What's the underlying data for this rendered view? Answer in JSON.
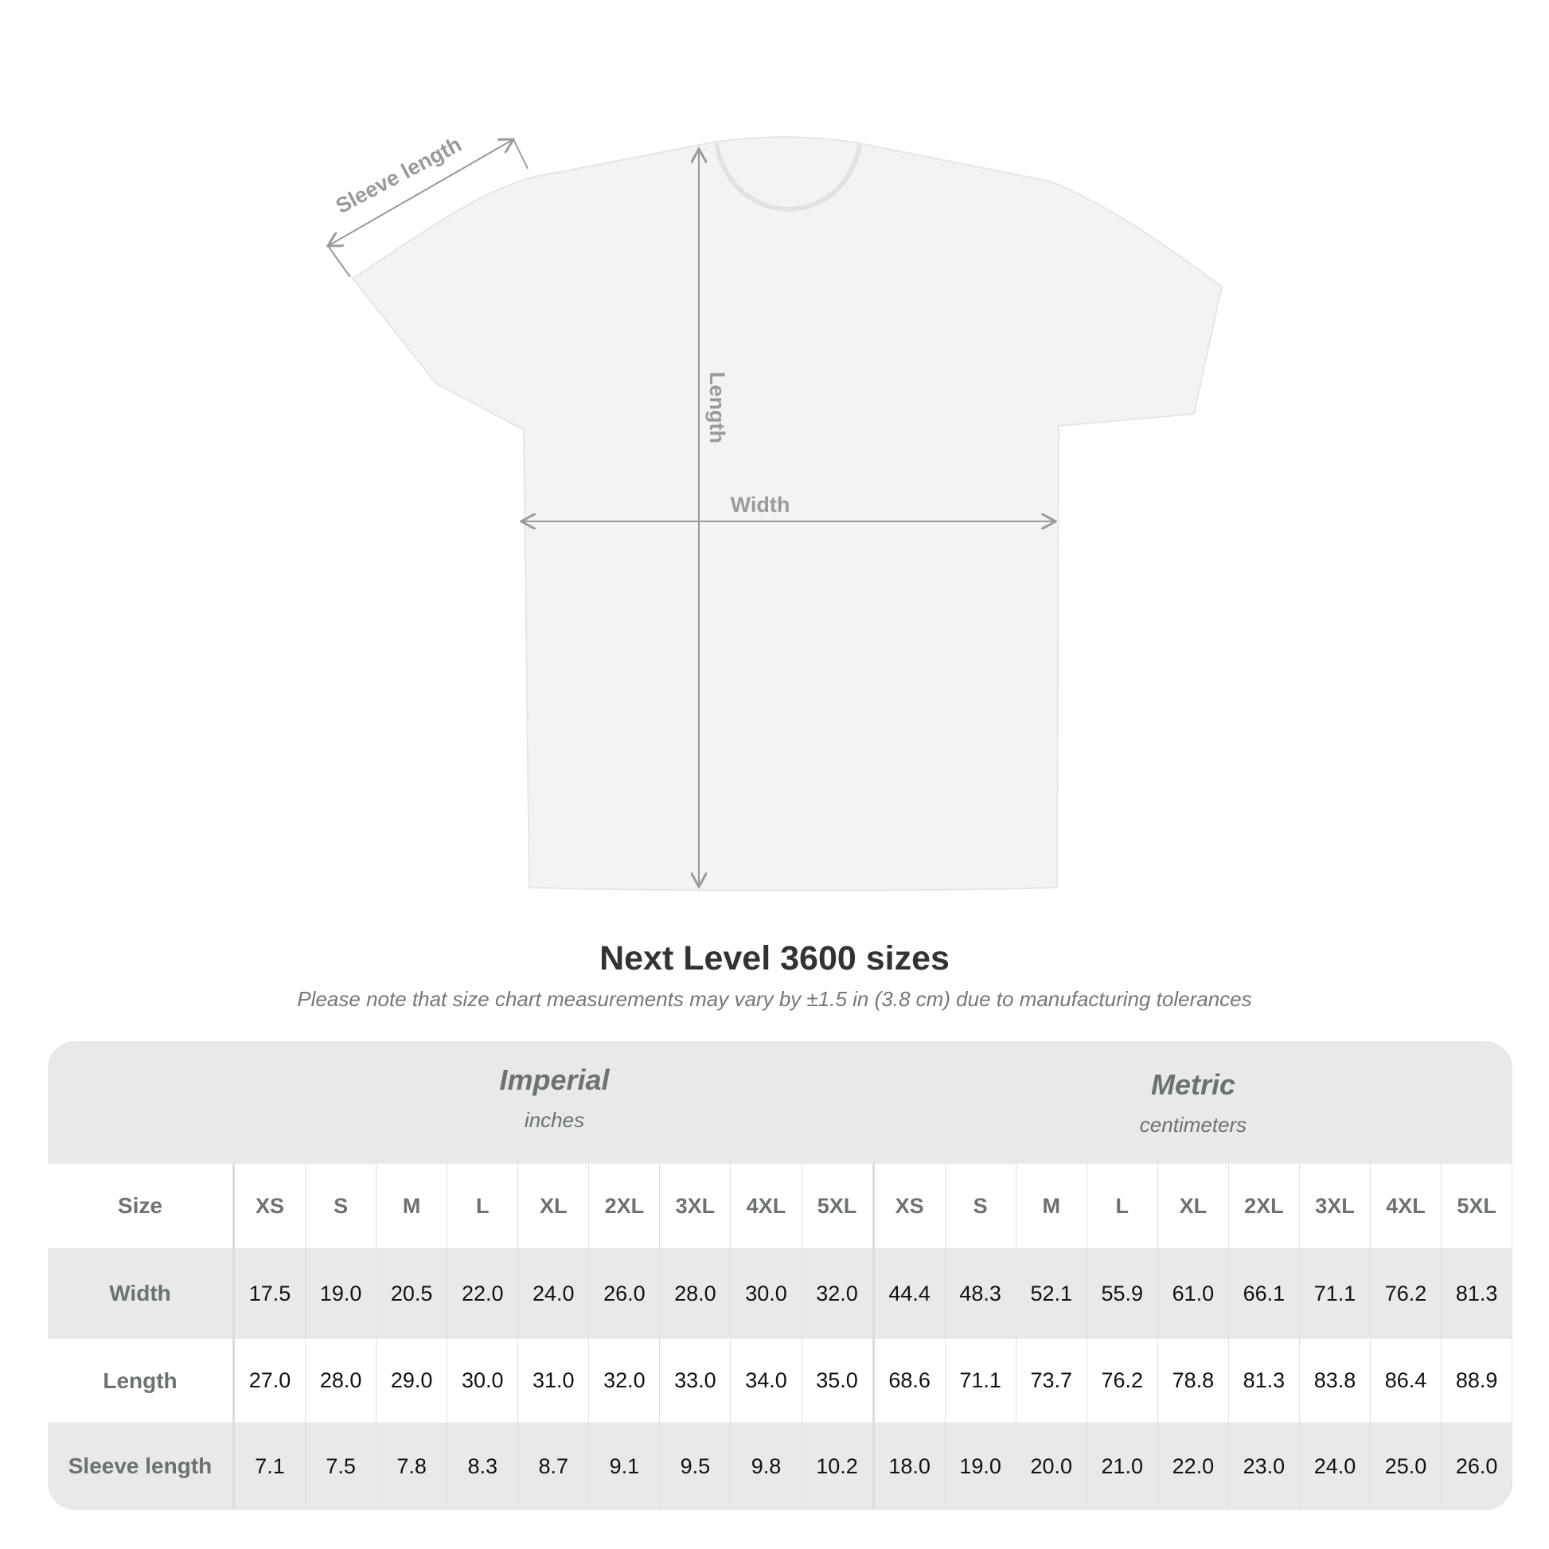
{
  "diagram": {
    "labels": {
      "sleeve": "Sleeve length",
      "length": "Length",
      "width": "Width"
    },
    "colors": {
      "shirt": "#f3f3f3",
      "arrow": "#9a9a9a"
    }
  },
  "title": "Next Level 3600 sizes",
  "note": "Please note that size chart measurements may vary by ±1.5 in (3.8 cm) due to manufacturing tolerances",
  "table": {
    "imperial": {
      "name": "Imperial",
      "unit": "inches"
    },
    "metric": {
      "name": "Metric",
      "unit": "centimeters"
    },
    "size_label": "Size",
    "sizes": [
      "XS",
      "S",
      "M",
      "L",
      "XL",
      "2XL",
      "3XL",
      "4XL",
      "5XL"
    ],
    "rows": [
      {
        "label": "Width",
        "imperial": [
          "17.5",
          "19.0",
          "20.5",
          "22.0",
          "24.0",
          "26.0",
          "28.0",
          "30.0",
          "32.0"
        ],
        "metric": [
          "44.4",
          "48.3",
          "52.1",
          "55.9",
          "61.0",
          "66.1",
          "71.1",
          "76.2",
          "81.3"
        ]
      },
      {
        "label": "Length",
        "imperial": [
          "27.0",
          "28.0",
          "29.0",
          "30.0",
          "31.0",
          "32.0",
          "33.0",
          "34.0",
          "35.0"
        ],
        "metric": [
          "68.6",
          "71.1",
          "73.7",
          "76.2",
          "78.8",
          "81.3",
          "83.8",
          "86.4",
          "88.9"
        ]
      },
      {
        "label": "Sleeve length",
        "imperial": [
          "7.1",
          "7.5",
          "7.8",
          "8.3",
          "8.7",
          "9.1",
          "9.5",
          "9.8",
          "10.2"
        ],
        "metric": [
          "18.0",
          "19.0",
          "20.0",
          "21.0",
          "22.0",
          "23.0",
          "24.0",
          "25.0",
          "26.0"
        ]
      }
    ]
  }
}
